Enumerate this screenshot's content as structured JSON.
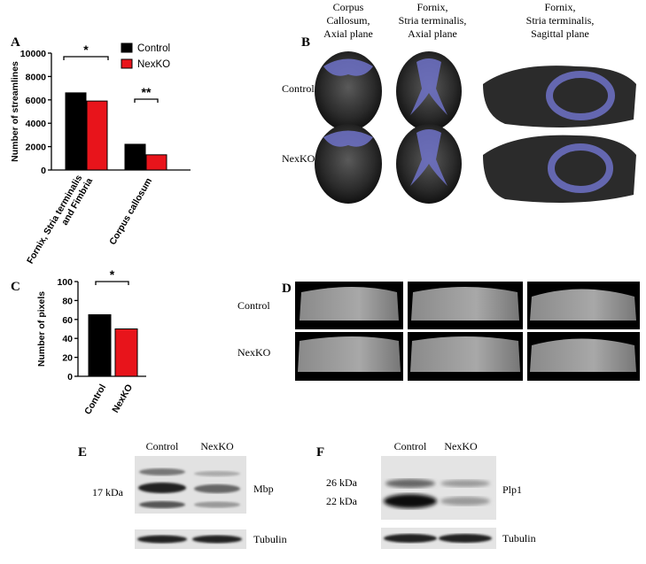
{
  "panel_labels": [
    "A",
    "B",
    "C",
    "D",
    "E",
    "F"
  ],
  "chart_data": [
    {
      "type": "bar",
      "ylabel": "Number of streamlines",
      "categories": [
        "Fornix, Stria terminalis and Fimbria",
        "Corpus callosum"
      ],
      "series": [
        {
          "name": "Control",
          "color": "#000000",
          "values": [
            6600,
            2200
          ]
        },
        {
          "name": "NexKO",
          "color": "#e8141b",
          "values": [
            5900,
            1300
          ]
        }
      ],
      "ylim": [
        0,
        10000
      ],
      "yticks": [
        0,
        2000,
        4000,
        6000,
        8000,
        10000
      ],
      "legend": "upper right",
      "annotations": [
        "*",
        "**"
      ]
    },
    {
      "type": "bar",
      "ylabel": "Number of pixels",
      "categories": [
        "Control",
        "NexKO"
      ],
      "series": [
        {
          "name": "pixels",
          "colors": [
            "#000000",
            "#e8141b"
          ],
          "values": [
            65,
            50
          ]
        }
      ],
      "ylim": [
        0,
        100
      ],
      "yticks": [
        0,
        20,
        40,
        60,
        80,
        100
      ],
      "annotations": [
        "*"
      ]
    }
  ],
  "panel_b": {
    "columns": [
      [
        "Corpus",
        "Callosum,",
        "Axial plane"
      ],
      [
        "Fornix,",
        "Stria terminalis,",
        "Axial plane"
      ],
      [
        "Fornix,",
        "Stria terminalis,",
        "Sagittal plane"
      ]
    ],
    "rows": [
      "Control",
      "NexKO"
    ]
  },
  "panel_d": {
    "rows": [
      "Control",
      "NexKO"
    ]
  },
  "panel_e": {
    "lanes": [
      "Control",
      "NexKO"
    ],
    "markers": [
      "17 kDa"
    ],
    "bands": [
      "Mbp",
      "Tubulin"
    ]
  },
  "panel_f": {
    "lanes": [
      "Control",
      "NexKO"
    ],
    "markers": [
      "26 kDa",
      "22 kDa"
    ],
    "bands": [
      "Plp1",
      "Tubulin"
    ]
  }
}
